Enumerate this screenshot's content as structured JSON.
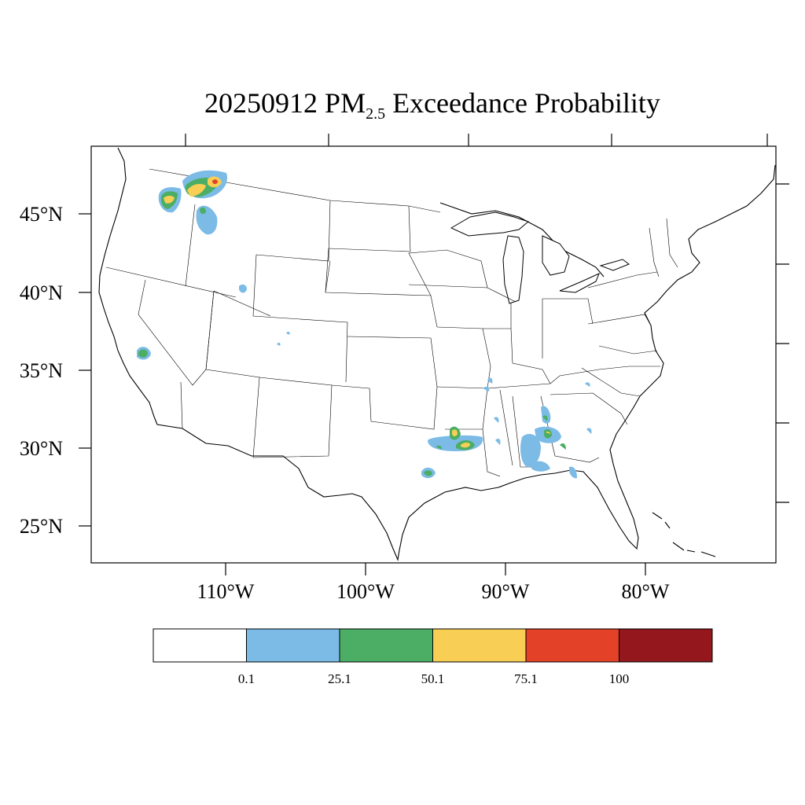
{
  "title": {
    "prefix": "20250912 PM",
    "subscript": "2.5",
    "suffix": " Exceedance Probability"
  },
  "lat_labels": [
    "45°N",
    "40°N",
    "35°N",
    "30°N",
    "25°N"
  ],
  "lon_labels": [
    "110°W",
    "100°W",
    "90°W",
    "80°W"
  ],
  "colorbar": {
    "labels": [
      "0.1",
      "25.1",
      "50.1",
      "75.1",
      "100"
    ],
    "colors": [
      "#ffffff",
      "#7bbbe6",
      "#4bae64",
      "#f8ce55",
      "#e34128",
      "#93171d"
    ]
  }
}
